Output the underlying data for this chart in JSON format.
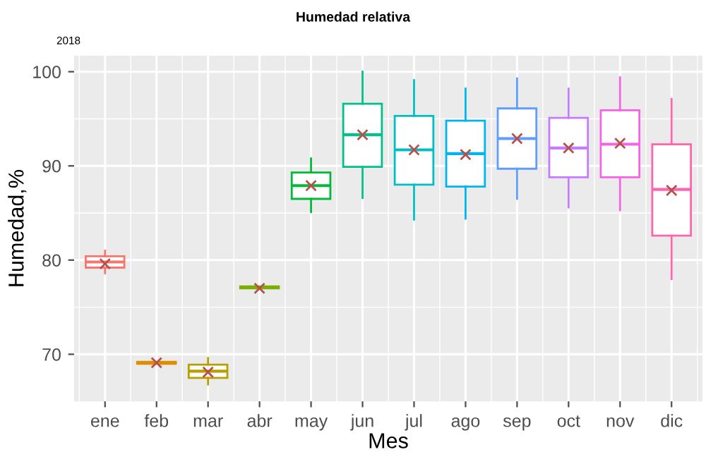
{
  "chart_data": {
    "type": "box",
    "title": "Humedad relativa",
    "subtitle": "2018",
    "xlabel": "Mes",
    "ylabel": "Humedad,%",
    "categories": [
      "ene",
      "feb",
      "mar",
      "abr",
      "may",
      "jun",
      "jul",
      "ago",
      "sep",
      "oct",
      "nov",
      "dic"
    ],
    "colors": [
      "#f8766d",
      "#de8c00",
      "#b79f00",
      "#7cae00",
      "#00ba38",
      "#00c08b",
      "#00bfc4",
      "#00b4f0",
      "#619cff",
      "#c77cff",
      "#f564e3",
      "#ff64b0"
    ],
    "boxes": [
      {
        "low": 78.6,
        "q1": 79.2,
        "median": 79.8,
        "q3": 80.4,
        "high": 81.0,
        "mean": 79.6
      },
      {
        "low": 69.0,
        "q1": 69.0,
        "median": 69.1,
        "q3": 69.2,
        "high": 69.2,
        "mean": 69.1
      },
      {
        "low": 66.8,
        "q1": 67.5,
        "median": 68.2,
        "q3": 68.9,
        "high": 69.6,
        "mean": 68.1
      },
      {
        "low": 77.0,
        "q1": 77.0,
        "median": 77.1,
        "q3": 77.2,
        "high": 77.2,
        "mean": 77.0
      },
      {
        "low": 85.1,
        "q1": 86.5,
        "median": 87.9,
        "q3": 89.3,
        "high": 90.8,
        "mean": 87.9
      },
      {
        "low": 86.6,
        "q1": 89.9,
        "median": 93.3,
        "q3": 96.6,
        "high": 100.0,
        "mean": 93.3
      },
      {
        "low": 84.3,
        "q1": 88.0,
        "median": 91.7,
        "q3": 95.3,
        "high": 99.1,
        "mean": 91.7
      },
      {
        "low": 84.4,
        "q1": 87.8,
        "median": 91.3,
        "q3": 94.8,
        "high": 98.2,
        "mean": 91.2
      },
      {
        "low": 86.5,
        "q1": 89.7,
        "median": 92.9,
        "q3": 96.1,
        "high": 99.3,
        "mean": 92.9
      },
      {
        "low": 85.6,
        "q1": 88.8,
        "median": 91.9,
        "q3": 95.1,
        "high": 98.2,
        "mean": 91.9
      },
      {
        "low": 85.3,
        "q1": 88.8,
        "median": 92.3,
        "q3": 95.9,
        "high": 99.4,
        "mean": 92.4
      },
      {
        "low": 78.0,
        "q1": 82.6,
        "median": 87.5,
        "q3": 92.3,
        "high": 97.1,
        "mean": 87.4
      }
    ],
    "ylim": [
      65,
      101.7
    ],
    "yticks": [
      70,
      80,
      90,
      100
    ],
    "grid": true
  }
}
